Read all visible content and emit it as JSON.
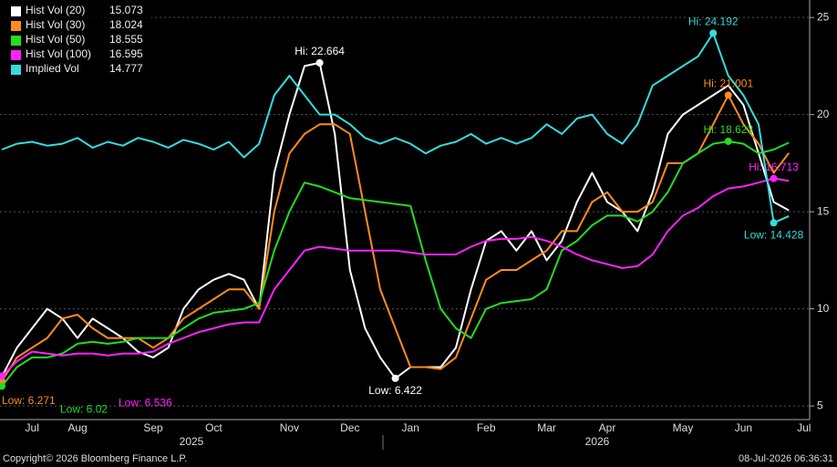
{
  "chart_data": {
    "type": "line",
    "categories": [
      null,
      null,
      "Jul",
      null,
      null,
      "Aug",
      null,
      null,
      null,
      null,
      "Sep",
      null,
      null,
      null,
      "Oct",
      null,
      null,
      null,
      null,
      "Nov",
      null,
      null,
      null,
      "Dec",
      null,
      null,
      null,
      "Jan",
      null,
      null,
      null,
      null,
      "Feb",
      null,
      null,
      null,
      "Mar",
      null,
      null,
      null,
      "Apr",
      null,
      null,
      null,
      null,
      "May",
      null,
      null,
      null,
      "Jun",
      null,
      null,
      null,
      "Jul"
    ],
    "year_labels": [
      "2025",
      "2026"
    ],
    "ylim": [
      4.3,
      25.9
    ],
    "yticks": [
      5,
      10,
      15,
      20,
      25
    ],
    "grid": true,
    "legend": "top-left",
    "series": [
      {
        "name": "Hist Vol (20)",
        "color": "#ffffff",
        "hi_label": "Hi: 22.664",
        "low_label": "Low: 6.422",
        "values": [
          6.5,
          8,
          9,
          10,
          9.5,
          8.5,
          9.5,
          9,
          8.5,
          7.8,
          7.5,
          8,
          10,
          11,
          11.5,
          11.8,
          11.5,
          10,
          17,
          20,
          22.5,
          22.664,
          19,
          12,
          9,
          7.5,
          6.422,
          7,
          7,
          7,
          8,
          11,
          13.5,
          14,
          13,
          14,
          12.5,
          13.5,
          15.5,
          17,
          15.5,
          15,
          14,
          16,
          19,
          20,
          20.5,
          21,
          21.5,
          20.5,
          18,
          15.5,
          15.073,
          null
        ]
      },
      {
        "name": "Hist Vol (30)",
        "color": "#ff8c1a",
        "hi_label": "Hi: 21.001",
        "low_label": "Low: 6.271",
        "values": [
          6.271,
          7.5,
          8,
          8.5,
          9.5,
          9.7,
          9,
          8.5,
          8.5,
          8.5,
          8,
          8.5,
          9.5,
          10,
          10.5,
          11,
          11,
          10,
          15,
          18,
          19,
          19.5,
          19.5,
          19,
          15,
          11,
          9,
          7,
          7,
          6.9,
          7.5,
          9.5,
          11.5,
          12,
          12,
          12.5,
          13,
          14,
          14,
          15.5,
          16,
          15,
          15,
          15.5,
          17.5,
          17.5,
          18,
          19.5,
          21.001,
          19.5,
          18.5,
          17,
          18.024,
          null
        ]
      },
      {
        "name": "Hist Vol (50)",
        "color": "#22dd22",
        "hi_label": "Hi: 18.623",
        "low_label": "Low: 6.02",
        "values": [
          6.02,
          7,
          7.5,
          7.5,
          7.7,
          8.2,
          8.3,
          8.2,
          8.3,
          8.5,
          8.5,
          8.5,
          9,
          9.5,
          9.8,
          9.9,
          10,
          10.3,
          13,
          15,
          16.5,
          16.3,
          16,
          15.7,
          15.6,
          15.5,
          15.4,
          15.3,
          12.5,
          10,
          9,
          8.5,
          10,
          10.3,
          10.4,
          10.5,
          11,
          13,
          13.5,
          14.3,
          14.8,
          14.8,
          14.5,
          15,
          16,
          17.5,
          18,
          18.5,
          18.623,
          18.5,
          18,
          18.2,
          18.555,
          null
        ]
      },
      {
        "name": "Hist Vol (100)",
        "color": "#ff22ff",
        "hi_label": "Hi: 16.713",
        "low_label": "Low: 6.536",
        "values": [
          6.536,
          7.3,
          7.8,
          7.7,
          7.6,
          7.7,
          7.7,
          7.6,
          7.7,
          7.7,
          7.8,
          8.2,
          8.5,
          8.8,
          9,
          9.2,
          9.3,
          9.3,
          11,
          12,
          13,
          13.2,
          13.1,
          13,
          13,
          13,
          13,
          12.9,
          12.8,
          12.8,
          12.8,
          13.2,
          13.5,
          13.6,
          13.6,
          13.7,
          13.5,
          13.2,
          12.8,
          12.5,
          12.3,
          12.1,
          12.2,
          12.8,
          14,
          14.8,
          15.2,
          15.8,
          16.2,
          16.3,
          16.5,
          16.713,
          16.595,
          null
        ]
      },
      {
        "name": "Implied Vol",
        "color": "#33dddd",
        "hi_label": "Hi: 24.192",
        "low_label": "Low: 14.428",
        "values": [
          18.2,
          18.5,
          18.6,
          18.4,
          18.5,
          18.8,
          18.3,
          18.6,
          18.4,
          18.8,
          18.6,
          18.3,
          18.7,
          18.5,
          18.2,
          18.6,
          17.8,
          18.5,
          21,
          22,
          21,
          20,
          20,
          19.5,
          18.8,
          18.5,
          18.8,
          18.5,
          18,
          18.4,
          18.6,
          19,
          18.5,
          18.8,
          18.5,
          18.8,
          19.5,
          19,
          19.8,
          20,
          19,
          18.5,
          19.5,
          21.5,
          22,
          22.5,
          23,
          24.192,
          22,
          21,
          19.5,
          14.428,
          14.777,
          null
        ]
      }
    ]
  },
  "footer": {
    "copyright": "Copyright© 2026 Bloomberg Finance L.P.",
    "timestamp": "08-Jul-2026 06:36:31"
  }
}
